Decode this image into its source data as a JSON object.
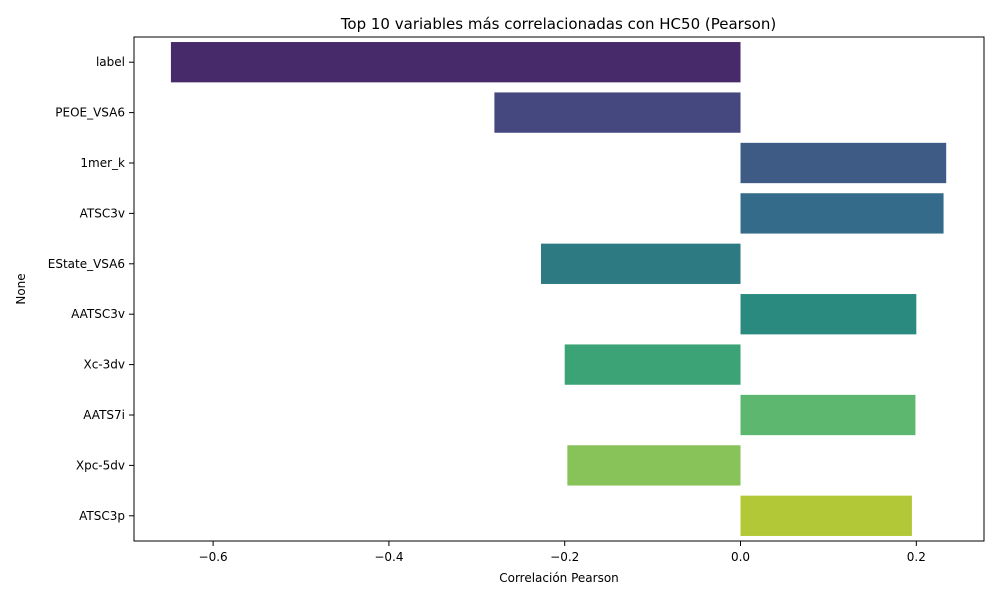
{
  "chart_data": {
    "type": "bar",
    "orientation": "horizontal",
    "title": "Top 10 variables más correlacionadas con HC50 (Pearson)",
    "xlabel": "Correlación Pearson",
    "ylabel": "None",
    "categories": [
      "label",
      "PEOE_VSA6",
      "1mer_k",
      "ATSC3v",
      "EState_VSA6",
      "AATSC3v",
      "Xc-3dv",
      "AATS7i",
      "Xpc-5dv",
      "ATSC3p"
    ],
    "values": [
      -0.648,
      -0.28,
      0.234,
      0.231,
      -0.227,
      0.2,
      -0.2,
      0.199,
      -0.197,
      0.195
    ],
    "colors": [
      "#472a6a",
      "#45477f",
      "#3e5b85",
      "#346b8a",
      "#2d7a83",
      "#2b8a80",
      "#3ba376",
      "#5db76e",
      "#88c35a",
      "#b3c836"
    ],
    "xlim": [
      -0.69,
      0.277
    ],
    "xticks": [
      -0.6,
      -0.4,
      -0.2,
      0.0,
      0.2
    ],
    "xtick_labels": [
      "−0.6",
      "−0.4",
      "−0.2",
      "0.0",
      "0.2"
    ],
    "grid": false,
    "legend": "none"
  }
}
